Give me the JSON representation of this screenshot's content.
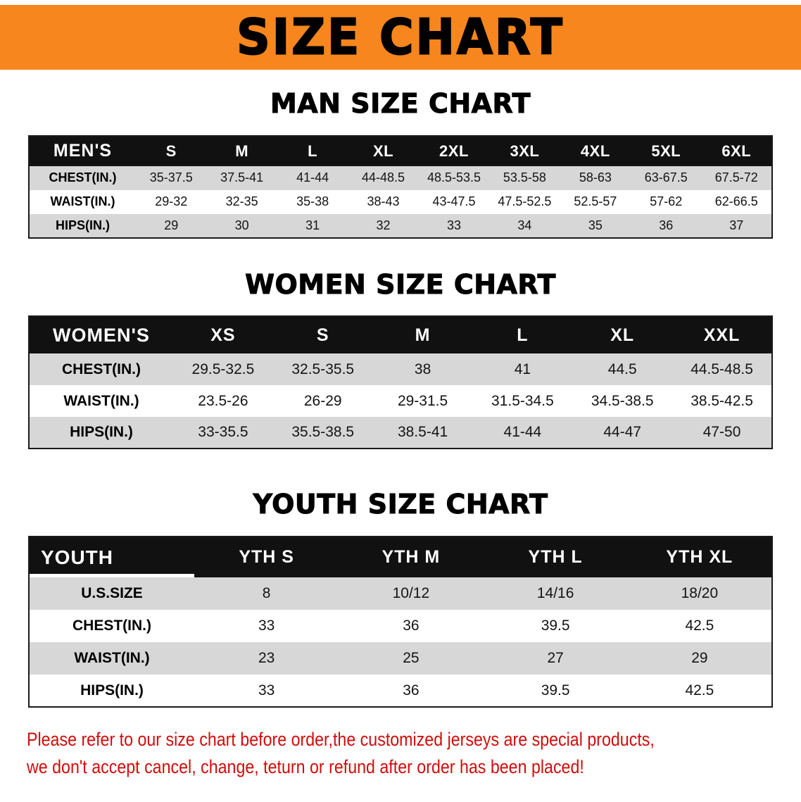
{
  "colors": {
    "banner_bg": "#f6861d",
    "table_header_bg": "#111111",
    "row_alt_bg": "#d7d7d7",
    "disclaimer_text": "#d40b0b"
  },
  "banner": {
    "title": "SIZE CHART"
  },
  "sections": {
    "men": {
      "heading": "MAN SIZE CHART",
      "header": [
        "MEN'S",
        "S",
        "M",
        "L",
        "XL",
        "2XL",
        "3XL",
        "4XL",
        "5XL",
        "6XL"
      ],
      "rows": [
        [
          "CHEST(IN.)",
          "35-37.5",
          "37.5-41",
          "41-44",
          "44-48.5",
          "48.5-53.5",
          "53.5-58",
          "58-63",
          "63-67.5",
          "67.5-72"
        ],
        [
          "WAIST(IN.)",
          "29-32",
          "32-35",
          "35-38",
          "38-43",
          "43-47.5",
          "47.5-52.5",
          "52.5-57",
          "57-62",
          "62-66.5"
        ],
        [
          "HIPS(IN.)",
          "29",
          "30",
          "31",
          "32",
          "33",
          "34",
          "35",
          "36",
          "37"
        ]
      ]
    },
    "women": {
      "heading": "WOMEN SIZE CHART",
      "header": [
        "WOMEN'S",
        "XS",
        "S",
        "M",
        "L",
        "XL",
        "XXL"
      ],
      "rows": [
        [
          "CHEST(IN.)",
          "29.5-32.5",
          "32.5-35.5",
          "38",
          "41",
          "44.5",
          "44.5-48.5"
        ],
        [
          "WAIST(IN.)",
          "23.5-26",
          "26-29",
          "29-31.5",
          "31.5-34.5",
          "34.5-38.5",
          "38.5-42.5"
        ],
        [
          "HIPS(IN.)",
          "33-35.5",
          "35.5-38.5",
          "38.5-41",
          "41-44",
          "44-47",
          "47-50"
        ]
      ]
    },
    "youth": {
      "heading": "YOUTH SIZE CHART",
      "header": [
        "YOUTH",
        "YTH S",
        "YTH M",
        "YTH L",
        "YTH XL"
      ],
      "rows": [
        [
          "U.S.SIZE",
          "8",
          "10/12",
          "14/16",
          "18/20"
        ],
        [
          "CHEST(IN.)",
          "33",
          "36",
          "39.5",
          "42.5"
        ],
        [
          "WAIST(IN.)",
          "23",
          "25",
          "27",
          "29"
        ],
        [
          "HIPS(IN.)",
          "33",
          "36",
          "39.5",
          "42.5"
        ]
      ]
    }
  },
  "disclaimer": {
    "line1": "Please refer to our size chart before order,the customized jerseys are special products,",
    "line2": "we don't accept cancel, change, teturn or refund after order has been placed!"
  }
}
